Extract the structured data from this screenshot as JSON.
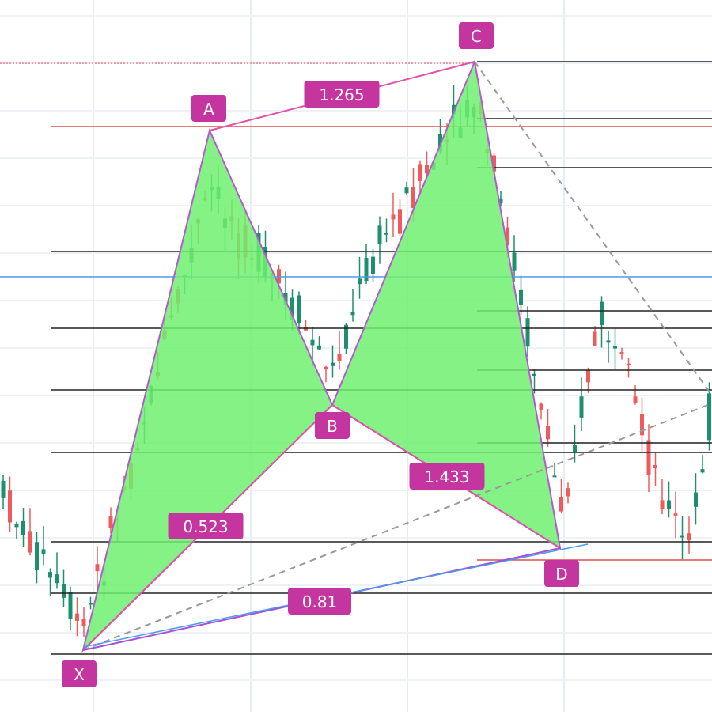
{
  "points": [
    {
      "label": "X"
    },
    {
      "label": "A"
    },
    {
      "label": "B"
    },
    {
      "label": "C"
    },
    {
      "label": "D"
    }
  ],
  "ratios": [
    "1.265",
    "0.523",
    "1.433",
    "0.81"
  ]
}
